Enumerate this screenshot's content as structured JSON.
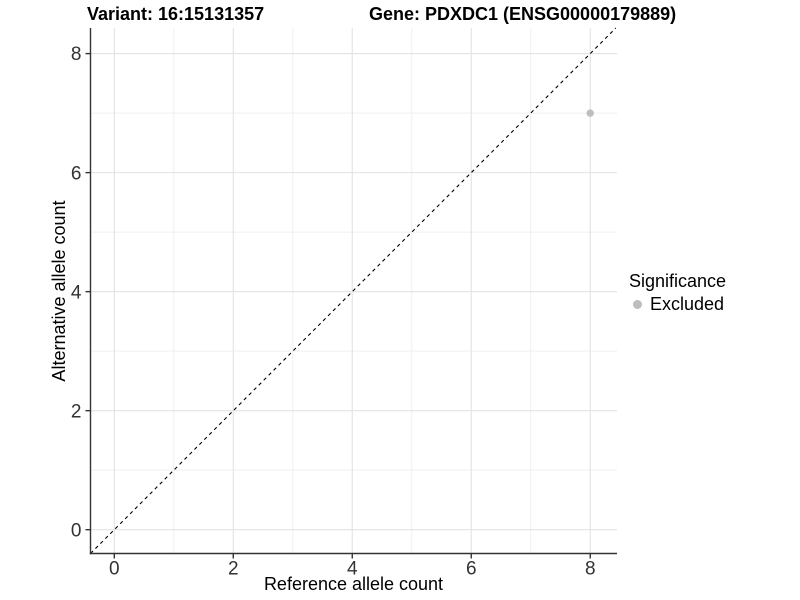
{
  "chart_data": {
    "type": "scatter",
    "title_left": "Variant: 16:15131357",
    "title_right": "Gene: PDXDC1 (ENSG00000179889)",
    "xlabel": "Reference allele count",
    "ylabel": "Alternative allele count",
    "xlim": [
      -0.4,
      8.45
    ],
    "ylim": [
      -0.4,
      8.43
    ],
    "xticks": [
      0,
      2,
      4,
      6,
      8
    ],
    "yticks": [
      0,
      2,
      4,
      6,
      8
    ],
    "xminor": [
      1,
      3,
      5,
      7
    ],
    "yminor": [
      1,
      3,
      5,
      7
    ],
    "grid": "on",
    "identity_line": {
      "style": "dashed",
      "slope": 1,
      "intercept": 0,
      "color": "#000000"
    },
    "series": [
      {
        "name": "Excluded",
        "color": "#bebebe",
        "points": [
          {
            "x": 8,
            "y": 7
          }
        ]
      }
    ],
    "legend": {
      "position": "right",
      "title": "Significance",
      "items": [
        {
          "label": "Excluded",
          "color": "#bebebe"
        }
      ]
    }
  }
}
